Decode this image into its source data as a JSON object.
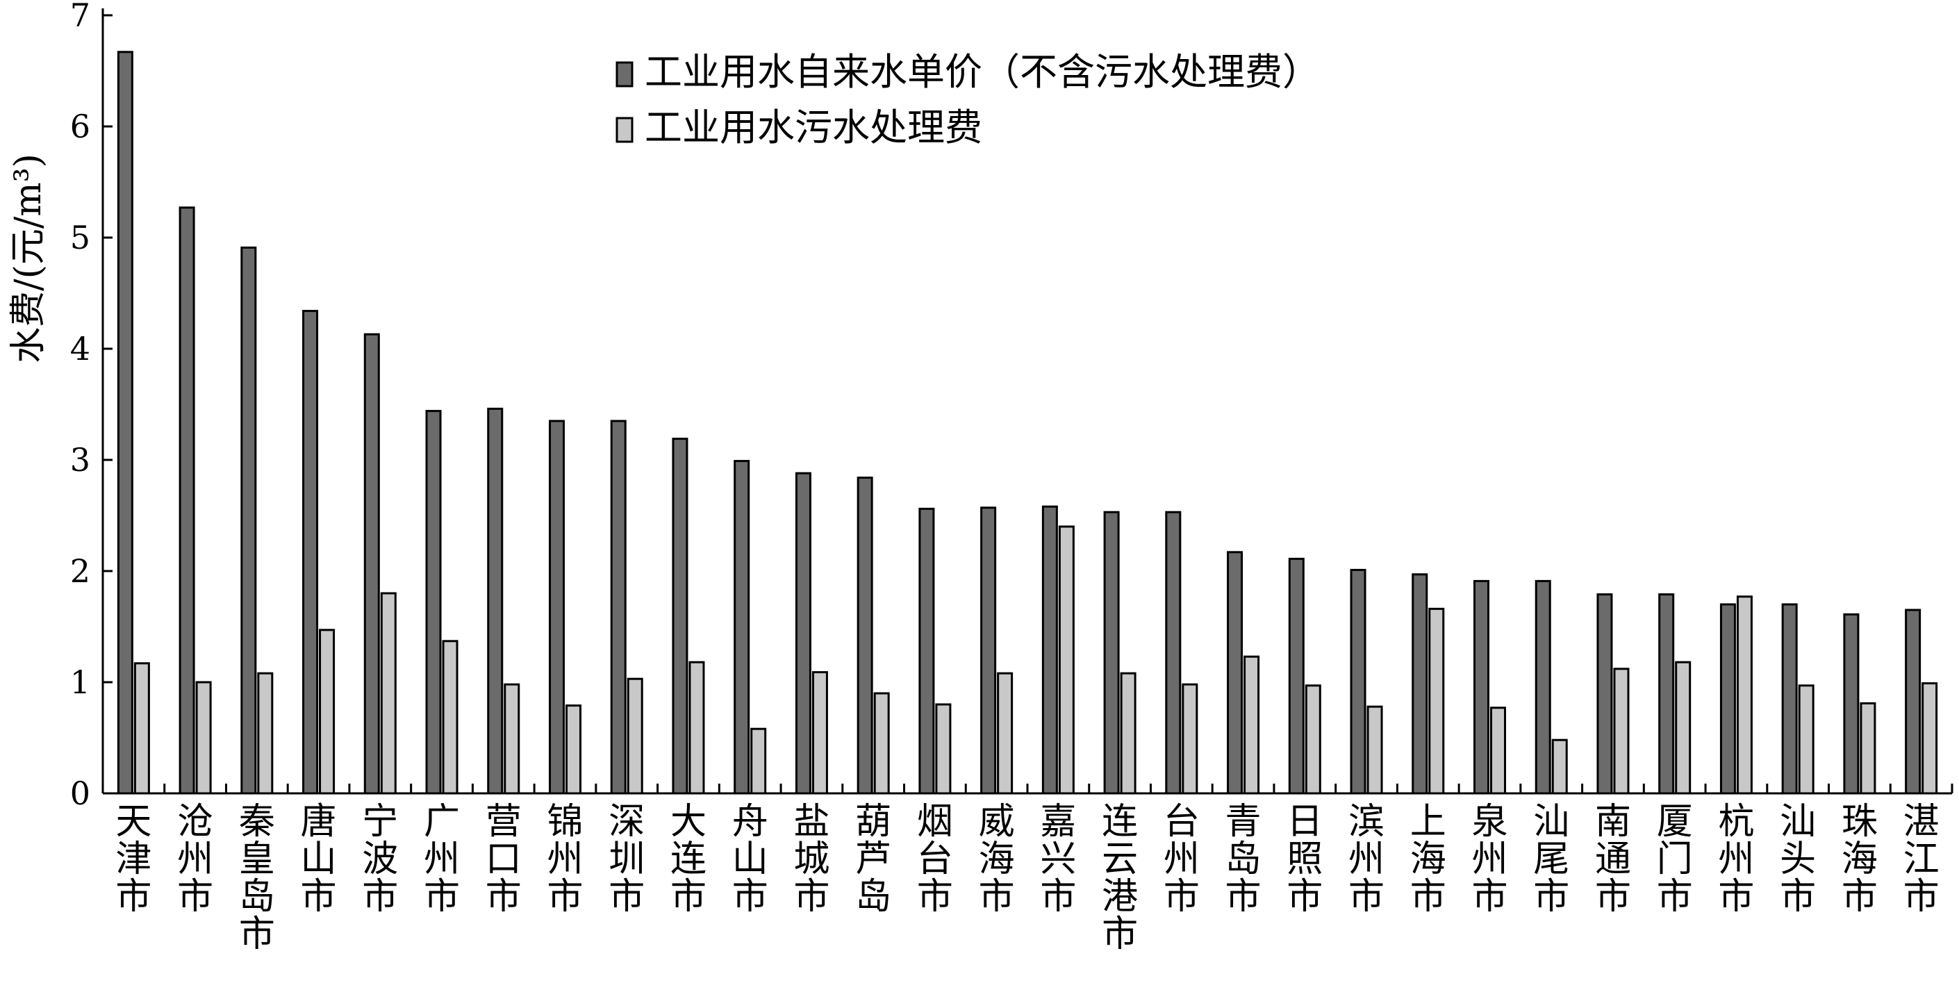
{
  "chart_data": {
    "type": "bar",
    "ylabel": "水费/(元/m³)",
    "ylim": [
      0,
      7
    ],
    "yticks": [
      0,
      1,
      2,
      3,
      4,
      5,
      6,
      7
    ],
    "grid": false,
    "legend_position": "top-center",
    "categories": [
      "天津市",
      "沧州市",
      "秦皇岛市",
      "唐山市",
      "宁波市",
      "广州市",
      "营口市",
      "锦州市",
      "深圳市",
      "大连市",
      "舟山市",
      "盐城市",
      "葫芦岛",
      "烟台市",
      "威海市",
      "嘉兴市",
      "连云港市",
      "台州市",
      "青岛市",
      "日照市",
      "滨州市",
      "上海市",
      "泉州市",
      "汕尾市",
      "南通市",
      "厦门市",
      "杭州市",
      "汕头市",
      "珠海市",
      "湛江市"
    ],
    "series": [
      {
        "name": "工业用水自来水单价（不含污水处理费）",
        "color": "#6b6b6b",
        "values": [
          6.67,
          5.27,
          4.91,
          4.34,
          4.13,
          3.44,
          3.46,
          3.35,
          3.35,
          3.19,
          2.99,
          2.88,
          2.84,
          2.56,
          2.57,
          2.58,
          2.53,
          2.53,
          2.17,
          2.11,
          2.01,
          1.97,
          1.91,
          1.91,
          1.79,
          1.79,
          1.7,
          1.7,
          1.61,
          1.65
        ]
      },
      {
        "name": "工业用水污水处理费",
        "color": "#c8c8c8",
        "values": [
          1.17,
          1.0,
          1.08,
          1.47,
          1.8,
          1.37,
          0.98,
          0.79,
          1.03,
          1.18,
          0.58,
          1.09,
          0.9,
          0.8,
          1.08,
          2.4,
          1.08,
          0.98,
          1.23,
          0.97,
          0.78,
          1.66,
          0.77,
          0.48,
          1.12,
          1.18,
          1.77,
          0.97,
          0.81,
          0.99
        ]
      }
    ]
  }
}
